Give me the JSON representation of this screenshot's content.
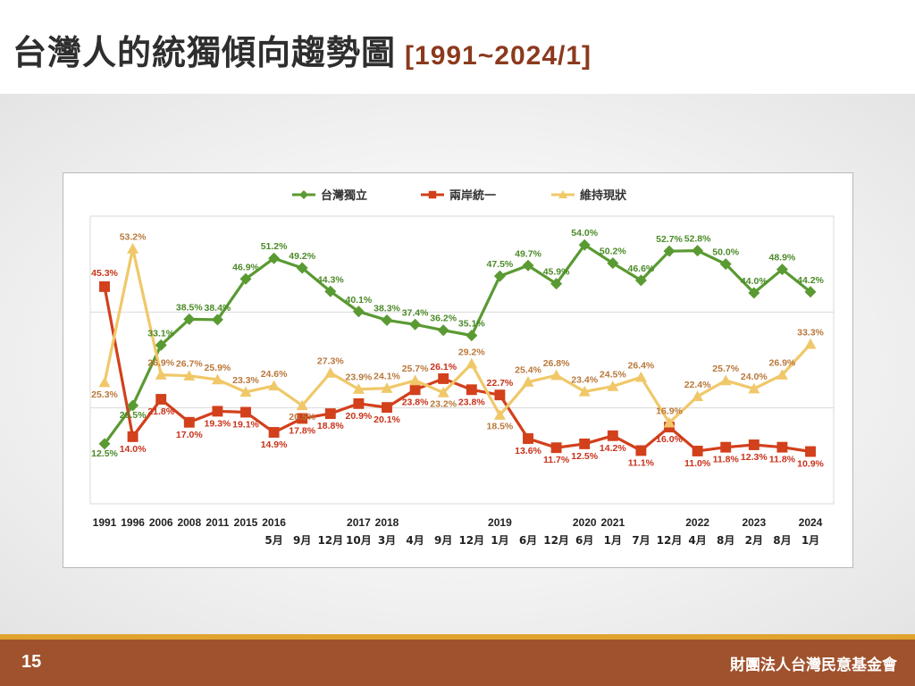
{
  "header": {
    "title": "台灣人的統獨傾向趨勢圖",
    "subtitle": "[1991~2024/1]"
  },
  "footer": {
    "page_number": "15",
    "organization": "財團法人台灣民意基金會"
  },
  "colors": {
    "independence": "#5a9a32",
    "unification": "#d2401c",
    "status_quo": "#f0c869",
    "footer": "#a0522d",
    "footer_accent": "#e0a32e"
  },
  "chart_data": {
    "type": "line",
    "x_year_labels": [
      "1991",
      "1996",
      "2006",
      "2008",
      "2011",
      "2015",
      "2016",
      "",
      "",
      "2017",
      "2018",
      "",
      "",
      "",
      "2019",
      "",
      "",
      "2020",
      "2021",
      "",
      "",
      "2022",
      "",
      "2023",
      "",
      "2024"
    ],
    "x_month_labels": [
      "",
      "",
      "",
      "",
      "",
      "",
      "5月",
      "9月",
      "12月",
      "10月",
      "3月",
      "4月",
      "9月",
      "12月",
      "1月",
      "6月",
      "12月",
      "6月",
      "1月",
      "7月",
      "12月",
      "4月",
      "8月",
      "2月",
      "8月",
      "1月"
    ],
    "categories": [
      "1991",
      "1996",
      "2006",
      "2008",
      "2011",
      "2015",
      "2016/5月",
      "9月",
      "12月",
      "2017/10月",
      "2018/3月",
      "4月",
      "9月",
      "12月",
      "2019/1月",
      "6月",
      "12月",
      "2020/6月",
      "2021/1月",
      "7月",
      "12月",
      "2022/4月",
      "8月",
      "2023/2月",
      "8月",
      "2024/1月"
    ],
    "ylim": [
      0,
      60
    ],
    "grid": "horizontal",
    "legend_position": "top-center",
    "series": [
      {
        "name": "台灣獨立",
        "key": "independence",
        "marker": "diamond",
        "values": [
          12.5,
          20.5,
          33.1,
          38.5,
          38.4,
          46.9,
          51.2,
          49.2,
          44.3,
          40.1,
          38.3,
          37.4,
          36.2,
          35.1,
          47.5,
          49.7,
          45.9,
          54.0,
          50.2,
          46.6,
          52.7,
          52.8,
          50.0,
          44.0,
          48.9,
          44.2
        ],
        "labels": [
          "12.5%",
          "20.5%",
          "33.1%",
          "38.5%",
          "38.4%",
          "46.9%",
          "51.2%",
          "49.2%",
          "44.3%",
          "40.1%",
          "38.3%",
          "37.4%",
          "36.2%",
          "35.1%",
          "47.5%",
          "49.7%",
          "45.9%",
          "54.0%",
          "50.2%",
          "46.6%",
          "52.7%",
          "52.8%",
          "50.0%",
          "44.0%",
          "48.9%",
          "44.2%"
        ]
      },
      {
        "name": "兩岸統一",
        "key": "unification",
        "marker": "square",
        "values": [
          45.3,
          14.0,
          21.8,
          17.0,
          19.3,
          19.1,
          14.9,
          17.8,
          18.8,
          20.9,
          20.1,
          23.8,
          26.1,
          23.8,
          22.7,
          13.6,
          11.7,
          12.5,
          14.2,
          11.1,
          16.0,
          11.0,
          11.8,
          12.3,
          11.8,
          10.9
        ],
        "labels": [
          "45.3%",
          "14.0%",
          "21.8%",
          "17.0%",
          "19.3%",
          "19.1%",
          "14.9%",
          "17.8%",
          "18.8%",
          "20.9%",
          "20.1%",
          "23.8%",
          "26.1%",
          "23.8%",
          "22.7%",
          "13.6%",
          "11.7%",
          "12.5%",
          "14.2%",
          "11.1%",
          "16.0%",
          "11.0%",
          "11.8%",
          "12.3%",
          "11.8%",
          "10.9%"
        ]
      },
      {
        "name": "維持現狀",
        "key": "status_quo",
        "marker": "triangle",
        "values": [
          25.3,
          53.2,
          26.9,
          26.7,
          25.9,
          23.3,
          24.6,
          20.5,
          27.3,
          23.9,
          24.1,
          25.7,
          23.2,
          29.2,
          18.5,
          25.4,
          26.8,
          23.4,
          24.5,
          26.4,
          16.9,
          22.4,
          25.7,
          24.0,
          26.9,
          33.3
        ],
        "labels": [
          "25.3%",
          "53.2%",
          "26.9%",
          "26.7%",
          "25.9%",
          "23.3%",
          "24.6%",
          "20.5%",
          "27.3%",
          "23.9%",
          "24.1%",
          "25.7%",
          "23.2%",
          "29.2%",
          "18.5%",
          "25.4%",
          "26.8%",
          "23.4%",
          "24.5%",
          "26.4%",
          "16.9%",
          "22.4%",
          "25.7%",
          "24.0%",
          "26.9%",
          "33.3%"
        ]
      }
    ]
  }
}
